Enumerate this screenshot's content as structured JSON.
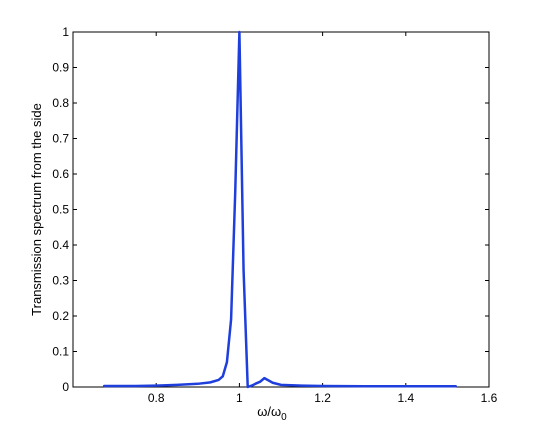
{
  "chart_data": {
    "type": "line",
    "xlabel": "ω/ω",
    "xlabel_sub": "0",
    "ylabel": "Transmission spectrum from the side",
    "xlim": [
      0.6,
      1.6
    ],
    "ylim": [
      0,
      1
    ],
    "xticks": [
      0.8,
      1,
      1.2,
      1.4,
      1.6
    ],
    "xtick_labels": [
      "0.8",
      "1",
      "1.2",
      "1.4",
      "1.6"
    ],
    "yticks": [
      0,
      0.1,
      0.2,
      0.3,
      0.4,
      0.5,
      0.6,
      0.7,
      0.8,
      0.9,
      1
    ],
    "ytick_labels": [
      "0",
      "0.1",
      "0.2",
      "0.3",
      "0.4",
      "0.5",
      "0.6",
      "0.7",
      "0.8",
      "0.9",
      "1"
    ],
    "grid": false,
    "series": [
      {
        "color": "#1f3fdc",
        "x": [
          0.675,
          0.75,
          0.8,
          0.85,
          0.9,
          0.93,
          0.95,
          0.96,
          0.97,
          0.98,
          0.99,
          1.0,
          1.01,
          1.02,
          1.03,
          1.04,
          1.05,
          1.06,
          1.08,
          1.1,
          1.15,
          1.2,
          1.3,
          1.4,
          1.52
        ],
        "y": [
          0.003,
          0.003,
          0.004,
          0.006,
          0.009,
          0.013,
          0.02,
          0.03,
          0.07,
          0.19,
          0.55,
          1.0,
          0.33,
          0.0,
          0.004,
          0.01,
          0.015,
          0.025,
          0.012,
          0.006,
          0.004,
          0.003,
          0.002,
          0.002,
          0.002
        ]
      }
    ]
  }
}
